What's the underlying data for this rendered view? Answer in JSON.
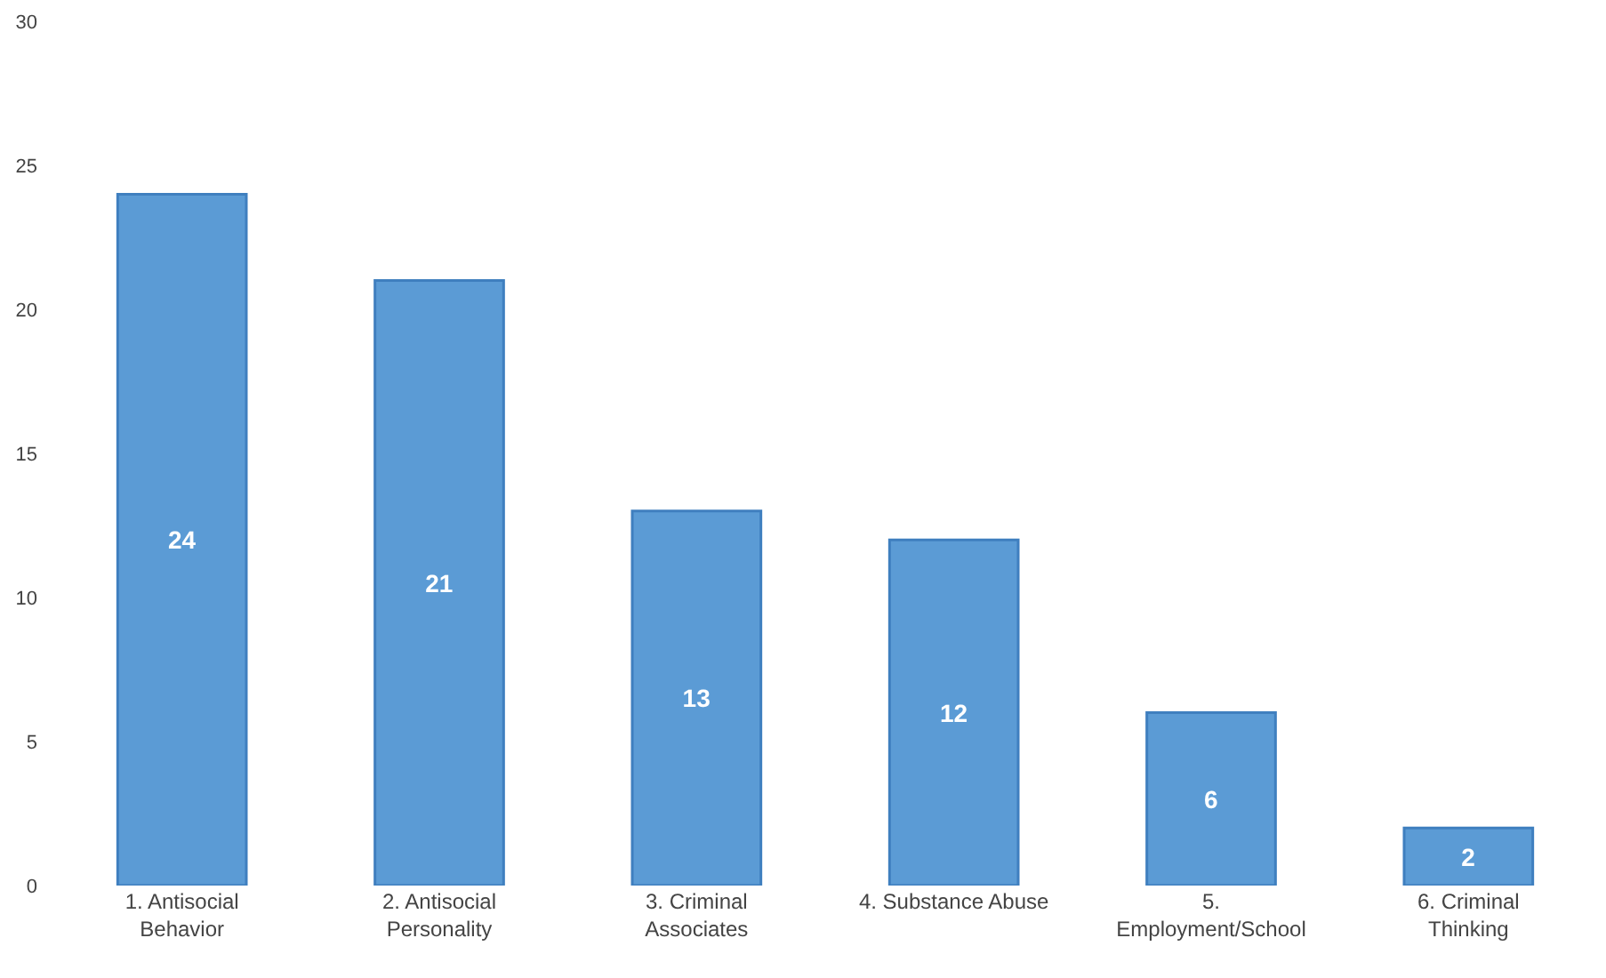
{
  "chart_data": {
    "type": "bar",
    "categories": [
      "1. Antisocial Behavior",
      "2. Antisocial Personality",
      "3. Criminal Associates",
      "4. Substance Abuse",
      "5. Employment/School",
      "6. Criminal Thinking"
    ],
    "values": [
      24,
      21,
      13,
      12,
      6,
      2
    ],
    "color": "#5b9bd5",
    "ylim": [
      0,
      30
    ],
    "yticks": [
      0,
      5,
      10,
      15,
      20,
      25,
      30
    ],
    "data_labels": true
  }
}
